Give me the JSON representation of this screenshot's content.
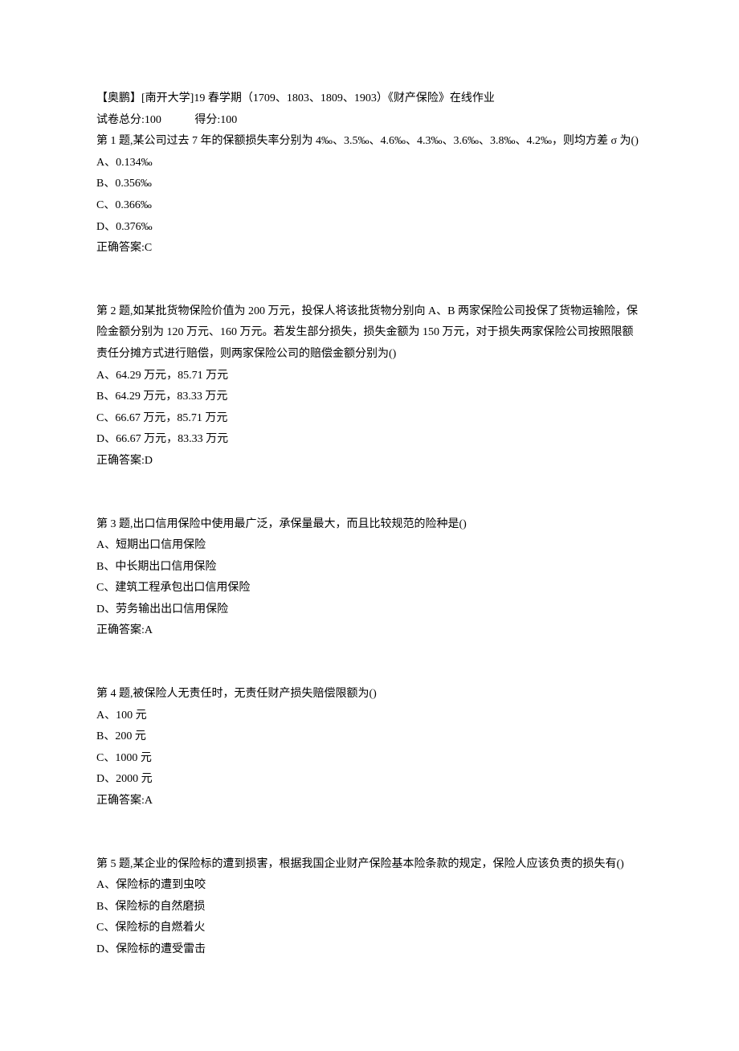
{
  "header": {
    "title": "【奥鹏】[南开大学]19 春学期（1709、1803、1809、1903）《财产保险》在线作业",
    "total_score_label": "试卷总分:100",
    "obtained_score_label": "得分:100"
  },
  "questions": [
    {
      "text": "第 1 题,某公司过去 7 年的保额损失率分别为 4‰、3.5‰、4.6‰、4.3‰、3.6‰、3.8‰、4.2‰，则均方差 σ 为()",
      "options": [
        "A、0.134‰",
        "B、0.356‰",
        "C、0.366‰",
        "D、0.376‰"
      ],
      "answer": "正确答案:C"
    },
    {
      "text": "第 2 题,如某批货物保险价值为 200 万元，投保人将该批货物分别向 A、B 两家保险公司投保了货物运输险，保险金额分别为 120 万元、160 万元。若发生部分损失，损失金额为 150 万元，对于损失两家保险公司按照限额责任分摊方式进行赔偿，则两家保险公司的赔偿金额分别为()",
      "options": [
        "A、64.29 万元，85.71 万元",
        "B、64.29 万元，83.33 万元",
        "C、66.67 万元，85.71 万元",
        "D、66.67 万元，83.33 万元"
      ],
      "answer": "正确答案:D"
    },
    {
      "text": "第 3 题,出口信用保险中使用最广泛，承保量最大，而且比较规范的险种是()",
      "options": [
        "A、短期出口信用保险",
        "B、中长期出口信用保险",
        "C、建筑工程承包出口信用保险",
        "D、劳务输出出口信用保险"
      ],
      "answer": "正确答案:A"
    },
    {
      "text": "第 4 题,被保险人无责任时，无责任财产损失赔偿限额为()",
      "options": [
        "A、100 元",
        "B、200 元",
        "C、1000 元",
        "D、2000 元"
      ],
      "answer": "正确答案:A"
    },
    {
      "text": "第 5 题,某企业的保险标的遭到损害，根据我国企业财产保险基本险条款的规定，保险人应该负责的损失有()",
      "options": [
        "A、保险标的遭到虫咬",
        "B、保险标的自然磨损",
        "C、保险标的自燃着火",
        "D、保险标的遭受雷击"
      ],
      "answer": ""
    }
  ]
}
